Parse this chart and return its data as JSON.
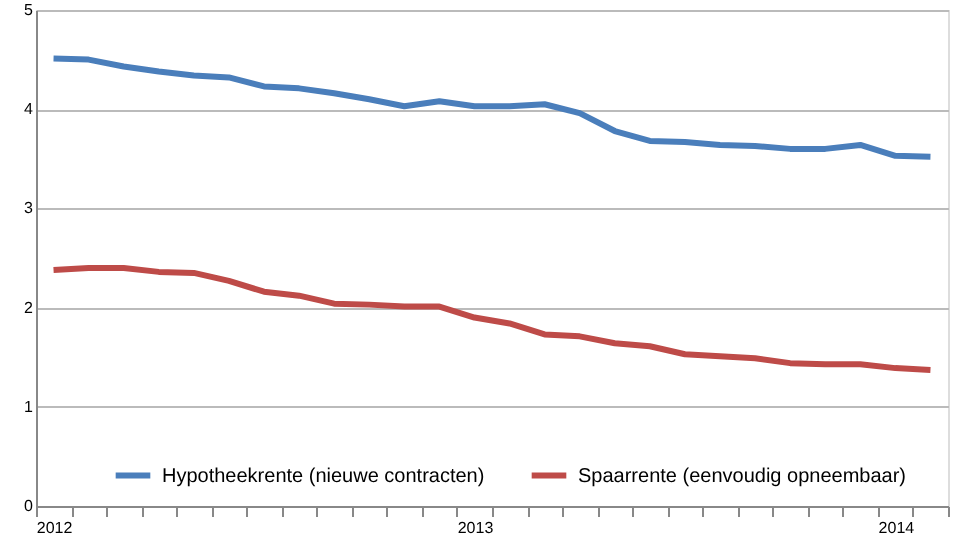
{
  "chart_data": {
    "type": "line",
    "categories": [
      "2012",
      null,
      null,
      null,
      null,
      null,
      null,
      null,
      null,
      null,
      null,
      null,
      "2013",
      null,
      null,
      null,
      null,
      null,
      null,
      null,
      null,
      null,
      null,
      null,
      "2014",
      null
    ],
    "series": [
      {
        "name": "Hypotheekrente (nieuwe contracten)",
        "color": "#4a7ebb",
        "values": [
          4.51,
          4.5,
          4.43,
          4.38,
          4.34,
          4.32,
          4.23,
          4.21,
          4.16,
          4.1,
          4.03,
          4.08,
          4.03,
          4.03,
          4.05,
          3.96,
          3.78,
          3.68,
          3.67,
          3.64,
          3.63,
          3.6,
          3.6,
          3.64,
          3.53,
          3.52
        ]
      },
      {
        "name": "Spaarrente (eenvoudig opneembaar)",
        "color": "#be4b48",
        "values": [
          2.38,
          2.4,
          2.4,
          2.36,
          2.35,
          2.27,
          2.16,
          2.12,
          2.04,
          2.03,
          2.01,
          2.01,
          1.9,
          1.84,
          1.73,
          1.71,
          1.64,
          1.61,
          1.53,
          1.51,
          1.49,
          1.44,
          1.43,
          1.43,
          1.39,
          1.37
        ]
      }
    ],
    "ylim": [
      0,
      5
    ],
    "yticks": [
      0,
      1,
      2,
      3,
      4,
      5
    ],
    "grid": "y",
    "legend": "bottom",
    "marker": "none",
    "line_style": "solid"
  }
}
